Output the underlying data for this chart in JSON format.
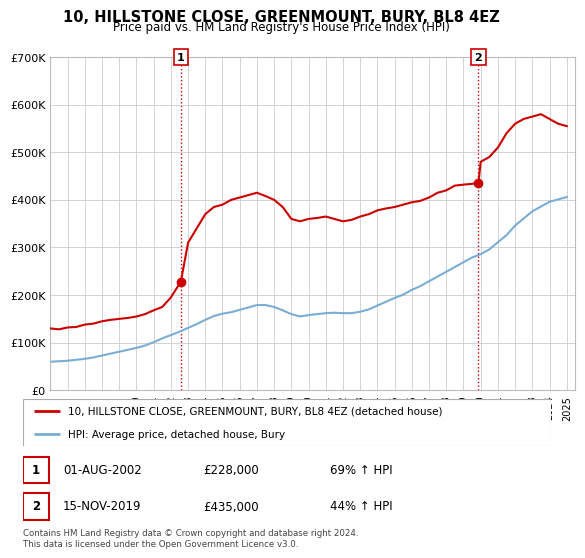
{
  "title": "10, HILLSTONE CLOSE, GREENMOUNT, BURY, BL8 4EZ",
  "subtitle": "Price paid vs. HM Land Registry's House Price Index (HPI)",
  "legend_label_red": "10, HILLSTONE CLOSE, GREENMOUNT, BURY, BL8 4EZ (detached house)",
  "legend_label_blue": "HPI: Average price, detached house, Bury",
  "point1_date": "01-AUG-2002",
  "point1_price": "£228,000",
  "point1_hpi": "69% ↑ HPI",
  "point1_x": 2002.58,
  "point1_y": 228000,
  "point2_date": "15-NOV-2019",
  "point2_price": "£435,000",
  "point2_hpi": "44% ↑ HPI",
  "point2_x": 2019.87,
  "point2_y": 435000,
  "ylim": [
    0,
    700000
  ],
  "xlim": [
    1995.0,
    2025.5
  ],
  "yticks": [
    0,
    100000,
    200000,
    300000,
    400000,
    500000,
    600000,
    700000
  ],
  "ytick_labels": [
    "£0",
    "£100K",
    "£200K",
    "£300K",
    "£400K",
    "£500K",
    "£600K",
    "£700K"
  ],
  "xticks": [
    1995,
    1996,
    1997,
    1998,
    1999,
    2000,
    2001,
    2002,
    2003,
    2004,
    2005,
    2006,
    2007,
    2008,
    2009,
    2010,
    2011,
    2012,
    2013,
    2014,
    2015,
    2016,
    2017,
    2018,
    2019,
    2020,
    2021,
    2022,
    2023,
    2024,
    2025
  ],
  "red_color": "#cc0000",
  "blue_color": "#7aadd4",
  "grid_color": "#cccccc",
  "bg_color": "#ffffff",
  "footnote": "Contains HM Land Registry data © Crown copyright and database right 2024.\nThis data is licensed under the Open Government Licence v3.0.",
  "red_x": [
    1995.0,
    1995.5,
    1996.0,
    1996.5,
    1997.0,
    1997.5,
    1998.0,
    1998.5,
    1999.0,
    1999.5,
    2000.0,
    2000.5,
    2001.0,
    2001.5,
    2002.0,
    2002.58,
    2003.0,
    2003.5,
    2004.0,
    2004.5,
    2005.0,
    2005.5,
    2006.0,
    2006.5,
    2007.0,
    2007.5,
    2008.0,
    2008.5,
    2009.0,
    2009.5,
    2010.0,
    2010.5,
    2011.0,
    2011.5,
    2012.0,
    2012.5,
    2013.0,
    2013.5,
    2014.0,
    2014.5,
    2015.0,
    2015.5,
    2016.0,
    2016.5,
    2017.0,
    2017.5,
    2018.0,
    2018.5,
    2019.0,
    2019.87,
    2020.0,
    2020.5,
    2021.0,
    2021.5,
    2022.0,
    2022.5,
    2023.0,
    2023.5,
    2024.0,
    2024.5,
    2025.0
  ],
  "red_y": [
    130000,
    128000,
    132000,
    133000,
    138000,
    140000,
    145000,
    148000,
    150000,
    152000,
    155000,
    160000,
    168000,
    175000,
    195000,
    228000,
    310000,
    340000,
    370000,
    385000,
    390000,
    400000,
    405000,
    410000,
    415000,
    408000,
    400000,
    385000,
    360000,
    355000,
    360000,
    362000,
    365000,
    360000,
    355000,
    358000,
    365000,
    370000,
    378000,
    382000,
    385000,
    390000,
    395000,
    398000,
    405000,
    415000,
    420000,
    430000,
    432000,
    435000,
    480000,
    490000,
    510000,
    540000,
    560000,
    570000,
    575000,
    580000,
    570000,
    560000,
    555000
  ],
  "blue_x": [
    1995.0,
    1995.5,
    1996.0,
    1996.5,
    1997.0,
    1997.5,
    1998.0,
    1998.5,
    1999.0,
    1999.5,
    2000.0,
    2000.5,
    2001.0,
    2001.5,
    2002.0,
    2002.5,
    2003.0,
    2003.5,
    2004.0,
    2004.5,
    2005.0,
    2005.5,
    2006.0,
    2006.5,
    2007.0,
    2007.5,
    2008.0,
    2008.5,
    2009.0,
    2009.5,
    2010.0,
    2010.5,
    2011.0,
    2011.5,
    2012.0,
    2012.5,
    2013.0,
    2013.5,
    2014.0,
    2014.5,
    2015.0,
    2015.5,
    2016.0,
    2016.5,
    2017.0,
    2017.5,
    2018.0,
    2018.5,
    2019.0,
    2019.5,
    2020.0,
    2020.5,
    2021.0,
    2021.5,
    2022.0,
    2022.5,
    2023.0,
    2023.5,
    2024.0,
    2024.5,
    2025.0
  ],
  "blue_y": [
    60000,
    61000,
    62000,
    64000,
    66000,
    69000,
    73000,
    77000,
    81000,
    85000,
    89000,
    94000,
    101000,
    109000,
    116000,
    123000,
    131000,
    139000,
    148000,
    156000,
    161000,
    164000,
    169000,
    174000,
    179000,
    179000,
    175000,
    168000,
    160000,
    155000,
    158000,
    160000,
    162000,
    163000,
    162000,
    162000,
    165000,
    170000,
    178000,
    186000,
    194000,
    201000,
    211000,
    219000,
    229000,
    239000,
    249000,
    259000,
    269000,
    279000,
    286000,
    296000,
    311000,
    326000,
    346000,
    361000,
    376000,
    386000,
    396000,
    401000,
    406000
  ]
}
